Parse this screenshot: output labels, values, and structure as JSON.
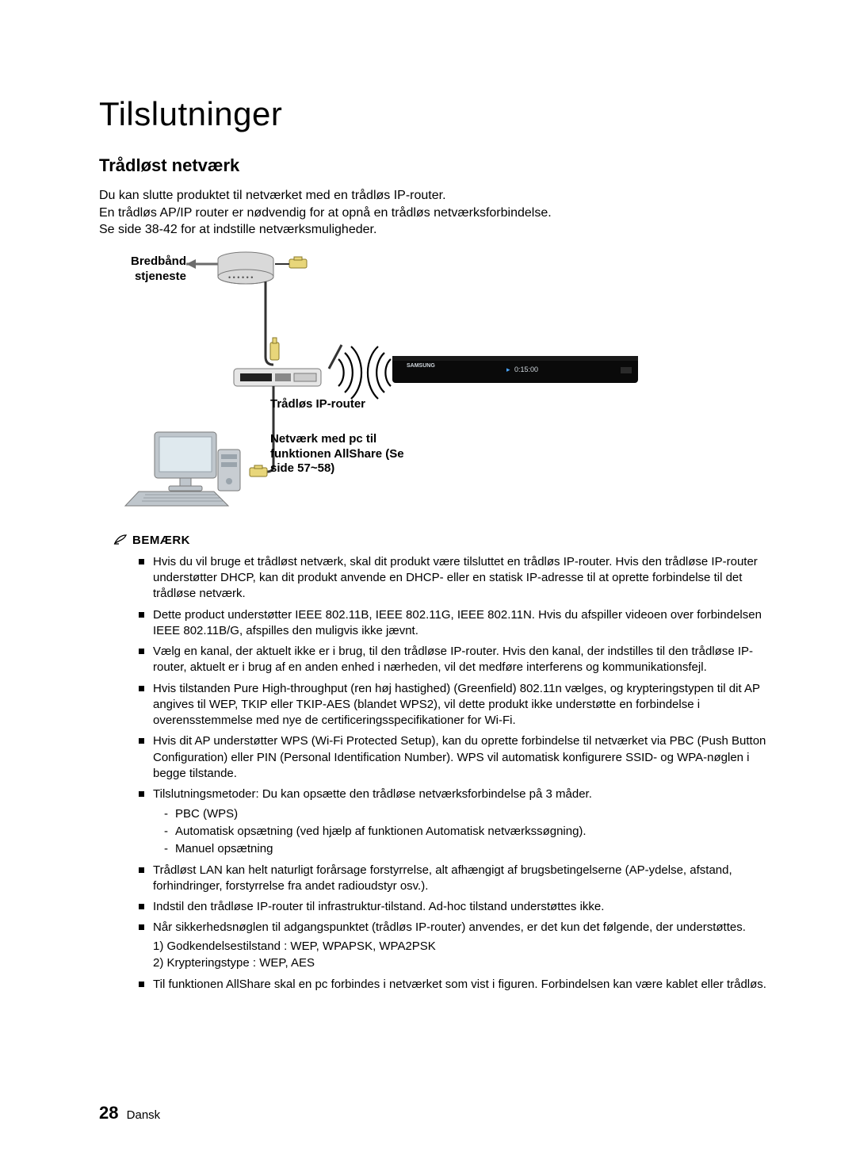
{
  "page": {
    "chapter_title": "Tilslutninger",
    "section_title": "Trådløst netværk",
    "intro_lines": [
      "Du kan slutte produktet til netværket med en trådløs IP-router.",
      "En trådløs AP/IP router er nødvendig for at opnå en trådløs netværksforbindelse.",
      "Se side 38-42 for at indstille netværksmuligheder."
    ],
    "diagram": {
      "broadband_label": "Bredbånd stjeneste",
      "router_label": "Trådløs IP-router",
      "pc_label": "Netværk med pc til funktionen AllShare (Se side 57~58)",
      "player_display": "0:15:00",
      "colors": {
        "modem_body": "#d9d9d9",
        "modem_stroke": "#7a7a7a",
        "arrow": "#6b6b6b",
        "cable": "#323232",
        "router_body": "#e6e6e6",
        "router_ports": "#222222",
        "player_body": "#0a0a0a",
        "player_accent": "#4aa6ff",
        "player_text": "#cfd6dc",
        "connector_fill": "#e8d67a",
        "connector_stroke": "#8a7a2a",
        "monitor_screen": "#dfe9ee",
        "monitor_body": "#bfc6cc",
        "keyboard": "#bfc6cc",
        "pc_tower": "#c8cdd2",
        "wave_stroke": "#000000"
      }
    },
    "note": {
      "header": "BEMÆRK",
      "items": [
        {
          "text": "Hvis du vil bruge et trådløst netværk, skal dit produkt være tilsluttet en trådløs IP-router. Hvis den trådløse IP-router understøtter DHCP, kan dit produkt anvende en DHCP- eller en statisk IP-adresse til at oprette forbindelse til det trådløse netværk."
        },
        {
          "text": "Dette product understøtter IEEE 802.11B, IEEE 802.11G, IEEE 802.11N. Hvis du afspiller videoen over forbindelsen IEEE 802.11B/G, afspilles den muligvis ikke jævnt."
        },
        {
          "text": "Vælg en kanal, der aktuelt ikke er i brug, til den trådløse IP-router. Hvis den kanal, der indstilles til den trådløse IP-router, aktuelt er i brug af en anden enhed i nærheden, vil det medføre interferens og kommunikationsfejl."
        },
        {
          "text": "Hvis tilstanden Pure High-throughput (ren høj hastighed) (Greenfield) 802.11n vælges, og krypteringstypen til dit AP angives til WEP, TKIP eller TKIP-AES (blandet WPS2), vil dette produkt ikke understøtte en forbindelse i overensstemmelse med nye de certificeringsspecifikationer for Wi-Fi."
        },
        {
          "text": "Hvis dit AP understøtter WPS (Wi-Fi Protected Setup), kan du oprette forbindelse til netværket via PBC (Push Button Configuration) eller PIN (Personal Identification Number). WPS vil automatisk konfigurere SSID- og WPA-nøglen i begge tilstande."
        },
        {
          "text": "Tilslutningsmetoder: Du kan opsætte den trådløse netværksforbindelse på 3 måder.",
          "sub": [
            "PBC (WPS)",
            "Automatisk opsætning (ved hjælp af funktionen Automatisk netværkssøgning).",
            "Manuel opsætning"
          ]
        },
        {
          "text": "Trådløst LAN kan helt naturligt forårsage forstyrrelse, alt afhængigt af brugsbetingelserne (AP-ydelse, afstand, forhindringer, forstyrrelse fra andet radioudstyr osv.)."
        },
        {
          "text": "Indstil den trådløse IP-router til infrastruktur-tilstand. Ad-hoc tilstand understøttes ikke."
        },
        {
          "text": "Når sikkerhedsnøglen til adgangspunktet (trådløs IP-router) anvendes, er det kun det følgende, der understøttes.",
          "num": [
            "1) Godkendelsestilstand : WEP, WPAPSK, WPA2PSK",
            "2) Krypteringstype : WEP, AES"
          ]
        },
        {
          "text": "Til funktionen AllShare skal en pc forbindes i netværket som vist i figuren. Forbindelsen kan være kablet eller trådløs."
        }
      ]
    },
    "footer": {
      "page_number": "28",
      "language": "Dansk"
    }
  }
}
